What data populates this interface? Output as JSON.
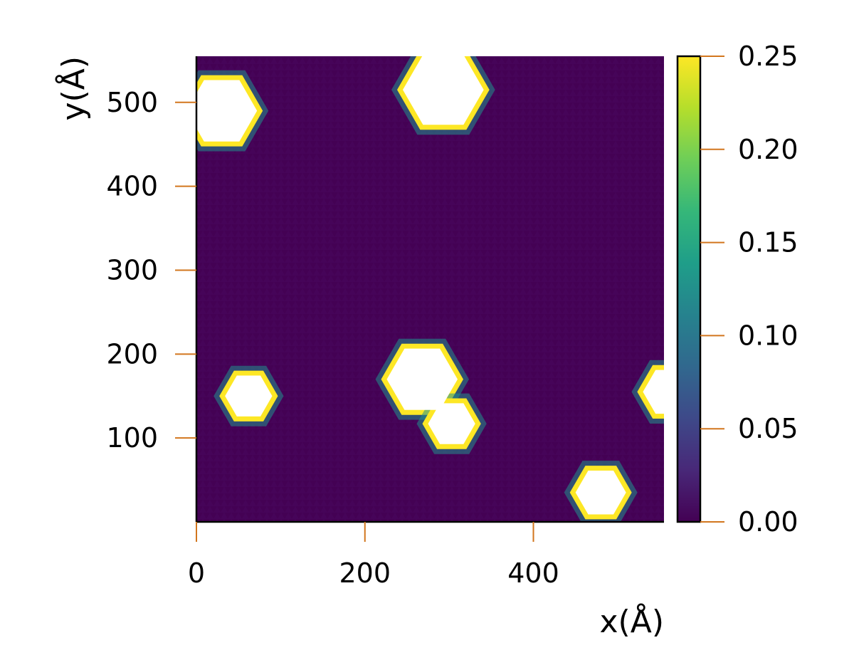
{
  "chart_data": {
    "type": "heatmap",
    "title": "",
    "xlabel": "x(Å)",
    "ylabel": "y(Å)",
    "xlim": [
      0,
      555
    ],
    "ylim": [
      0,
      555
    ],
    "xticks": [
      {
        "value": 0,
        "label": "0"
      },
      {
        "value": 200,
        "label": "200"
      },
      {
        "value": 400,
        "label": "400"
      }
    ],
    "yticks": [
      {
        "value": 100,
        "label": "100"
      },
      {
        "value": 200,
        "label": "200"
      },
      {
        "value": 300,
        "label": "300"
      },
      {
        "value": 400,
        "label": "400"
      },
      {
        "value": 500,
        "label": "500"
      }
    ],
    "colorbar": {
      "colormap": "viridis",
      "range": [
        0,
        0.25
      ],
      "ticks": [
        {
          "value": 0.0,
          "label": "0.00"
        },
        {
          "value": 0.05,
          "label": "0.05"
        },
        {
          "value": 0.1,
          "label": "0.10"
        },
        {
          "value": 0.15,
          "label": "0.15"
        },
        {
          "value": 0.2,
          "label": "0.20"
        },
        {
          "value": 0.25,
          "label": "0.25"
        }
      ]
    },
    "background_value": 0.01,
    "holes": [
      {
        "x": 30,
        "y": 490,
        "r": 42
      },
      {
        "x": 293,
        "y": 515,
        "r": 48
      },
      {
        "x": 62,
        "y": 150,
        "r": 28
      },
      {
        "x": 268,
        "y": 170,
        "r": 42
      },
      {
        "x": 303,
        "y": 117,
        "r": 28
      },
      {
        "x": 480,
        "y": 35,
        "r": 30
      },
      {
        "x": 560,
        "y": 155,
        "r": 30
      }
    ],
    "grid": false,
    "tick_color": "#d2761e",
    "spine_color": "#000000"
  }
}
